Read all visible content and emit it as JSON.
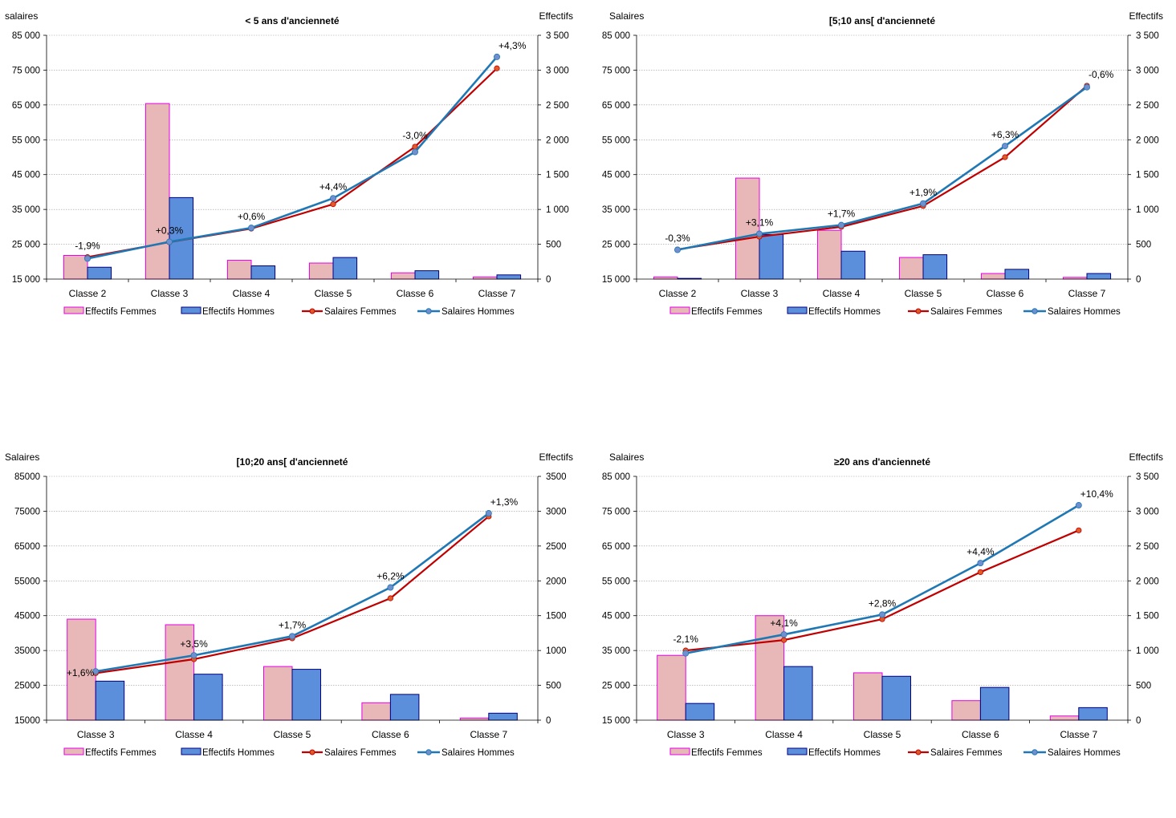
{
  "colors": {
    "women_bar_fill": "#e8b8b8",
    "women_bar_stroke": "#e600e6",
    "men_bar_fill": "#5b8fdb",
    "men_bar_stroke": "#000080",
    "women_line": "#c00000",
    "men_line": "#1f77b4",
    "grid": "#9a9a9a"
  },
  "legend_labels": [
    "Effectifs Femmes",
    "Effectifs Hommes",
    "Salaires Femmes",
    "Salaires Hommes"
  ],
  "chart_data": [
    {
      "type": "bar+line",
      "title": "< 5 ans d'ancienneté",
      "ylabel": "salaires",
      "y2label": "Effectifs",
      "categories": [
        "Classe 2",
        "Classe 3",
        "Classe 4",
        "Classe 5",
        "Classe 6",
        "Classe 7"
      ],
      "ylim": [
        15000,
        85000
      ],
      "yticks": [
        "15 000",
        "25 000",
        "35 000",
        "45 000",
        "55 000",
        "65 000",
        "75 000",
        "85 000"
      ],
      "y2lim": [
        0,
        3500
      ],
      "y2ticks": [
        "0",
        "500",
        "1 000",
        "1 500",
        "2 000",
        "2 500",
        "3 000",
        "3 500"
      ],
      "series": [
        {
          "name": "Effectifs Femmes",
          "kind": "bar",
          "axis": "y2",
          "values": [
            340,
            2520,
            270,
            230,
            90,
            30
          ]
        },
        {
          "name": "Effectifs Hommes",
          "kind": "bar",
          "axis": "y2",
          "values": [
            170,
            1170,
            190,
            310,
            120,
            60
          ]
        },
        {
          "name": "Salaires Femmes",
          "kind": "line",
          "axis": "y",
          "values": [
            21300,
            25600,
            29500,
            36500,
            53000,
            75500
          ]
        },
        {
          "name": "Salaires Hommes",
          "kind": "line",
          "axis": "y",
          "values": [
            20900,
            25700,
            29700,
            38200,
            51500,
            78800
          ]
        }
      ],
      "annotations": [
        "-1,9%",
        "+0,3%",
        "+0,6%",
        "+4,4%",
        "-3,0%",
        "+4,3%"
      ],
      "legend": "bottom"
    },
    {
      "type": "bar+line",
      "title": "[5;10 ans[ d'ancienneté",
      "ylabel": "Salaires",
      "y2label": "Effectifs",
      "categories": [
        "Classe 2",
        "Classe 3",
        "Classe 4",
        "Classe 5",
        "Classe 6",
        "Classe 7"
      ],
      "ylim": [
        15000,
        85000
      ],
      "yticks": [
        "15 000",
        "25 000",
        "35 000",
        "45 000",
        "55 000",
        "65 000",
        "75 000",
        "85 000"
      ],
      "y2lim": [
        0,
        3500
      ],
      "y2ticks": [
        "0",
        "500",
        "1 000",
        "1 500",
        "2 000",
        "2 500",
        "3 000",
        "3 500"
      ],
      "series": [
        {
          "name": "Effectifs Femmes",
          "kind": "bar",
          "axis": "y2",
          "values": [
            30,
            1450,
            700,
            310,
            80,
            25
          ]
        },
        {
          "name": "Effectifs Hommes",
          "kind": "bar",
          "axis": "y2",
          "values": [
            10,
            640,
            400,
            350,
            140,
            80
          ]
        },
        {
          "name": "Salaires Femmes",
          "kind": "line",
          "axis": "y",
          "values": [
            23500,
            27200,
            30000,
            36000,
            50000,
            70500
          ]
        },
        {
          "name": "Salaires Hommes",
          "kind": "line",
          "axis": "y",
          "values": [
            23400,
            28000,
            30500,
            36700,
            53200,
            70100
          ]
        }
      ],
      "annotations": [
        "-0,3%",
        "+3,1%",
        "+1,7%",
        "+1,9%",
        "+6,3%",
        "-0,6%"
      ],
      "legend": "bottom"
    },
    {
      "type": "bar+line",
      "title": "[10;20 ans[ d'ancienneté",
      "ylabel": "Salaires",
      "y2label": "Effectifs",
      "categories": [
        "Classe 3",
        "Classe 4",
        "Classe 5",
        "Classe 6",
        "Classe 7"
      ],
      "ylim": [
        15000,
        85000
      ],
      "yticks": [
        "15000",
        "25000",
        "35000",
        "45000",
        "55000",
        "65000",
        "75000",
        "85000"
      ],
      "y2lim": [
        0,
        3500
      ],
      "y2ticks": [
        "0",
        "500",
        "1000",
        "1500",
        "2000",
        "2500",
        "3000",
        "3500"
      ],
      "series": [
        {
          "name": "Effectifs Femmes",
          "kind": "bar",
          "axis": "y2",
          "values": [
            1450,
            1370,
            770,
            250,
            30
          ]
        },
        {
          "name": "Effectifs Hommes",
          "kind": "bar",
          "axis": "y2",
          "values": [
            560,
            660,
            730,
            370,
            100
          ]
        },
        {
          "name": "Salaires Femmes",
          "kind": "line",
          "axis": "y",
          "values": [
            28500,
            32500,
            38500,
            50000,
            73500
          ]
        },
        {
          "name": "Salaires Hommes",
          "kind": "line",
          "axis": "y",
          "values": [
            29000,
            33600,
            39100,
            53100,
            74400
          ]
        }
      ],
      "annotations": [
        "+1,6%",
        "+3,5%",
        "+1,7%",
        "+6,2%",
        "+1,3%"
      ],
      "legend": "bottom"
    },
    {
      "type": "bar+line",
      "title": "≥20 ans d'ancienneté",
      "ylabel": "Salaires",
      "y2label": "Effectifs",
      "categories": [
        "Classe 3",
        "Classe 4",
        "Classe 5",
        "Classe 6",
        "Classe 7"
      ],
      "ylim": [
        15000,
        85000
      ],
      "yticks": [
        "15 000",
        "25 000",
        "35 000",
        "45 000",
        "55 000",
        "65 000",
        "75 000",
        "85 000"
      ],
      "y2lim": [
        0,
        3500
      ],
      "y2ticks": [
        "0",
        "500",
        "1 000",
        "1 500",
        "2 000",
        "2 500",
        "3 000",
        "3 500"
      ],
      "series": [
        {
          "name": "Effectifs Femmes",
          "kind": "bar",
          "axis": "y2",
          "values": [
            930,
            1500,
            680,
            280,
            60
          ]
        },
        {
          "name": "Effectifs Hommes",
          "kind": "bar",
          "axis": "y2",
          "values": [
            240,
            770,
            630,
            470,
            180
          ]
        },
        {
          "name": "Salaires Femmes",
          "kind": "line",
          "axis": "y",
          "values": [
            35000,
            38000,
            44000,
            57500,
            69500
          ]
        },
        {
          "name": "Salaires Hommes",
          "kind": "line",
          "axis": "y",
          "values": [
            34200,
            39600,
            45300,
            60100,
            76700
          ]
        }
      ],
      "annotations": [
        "-2,1%",
        "+4,1%",
        "+2,8%",
        "+4,4%",
        "+10,4%"
      ],
      "legend": "bottom"
    }
  ]
}
